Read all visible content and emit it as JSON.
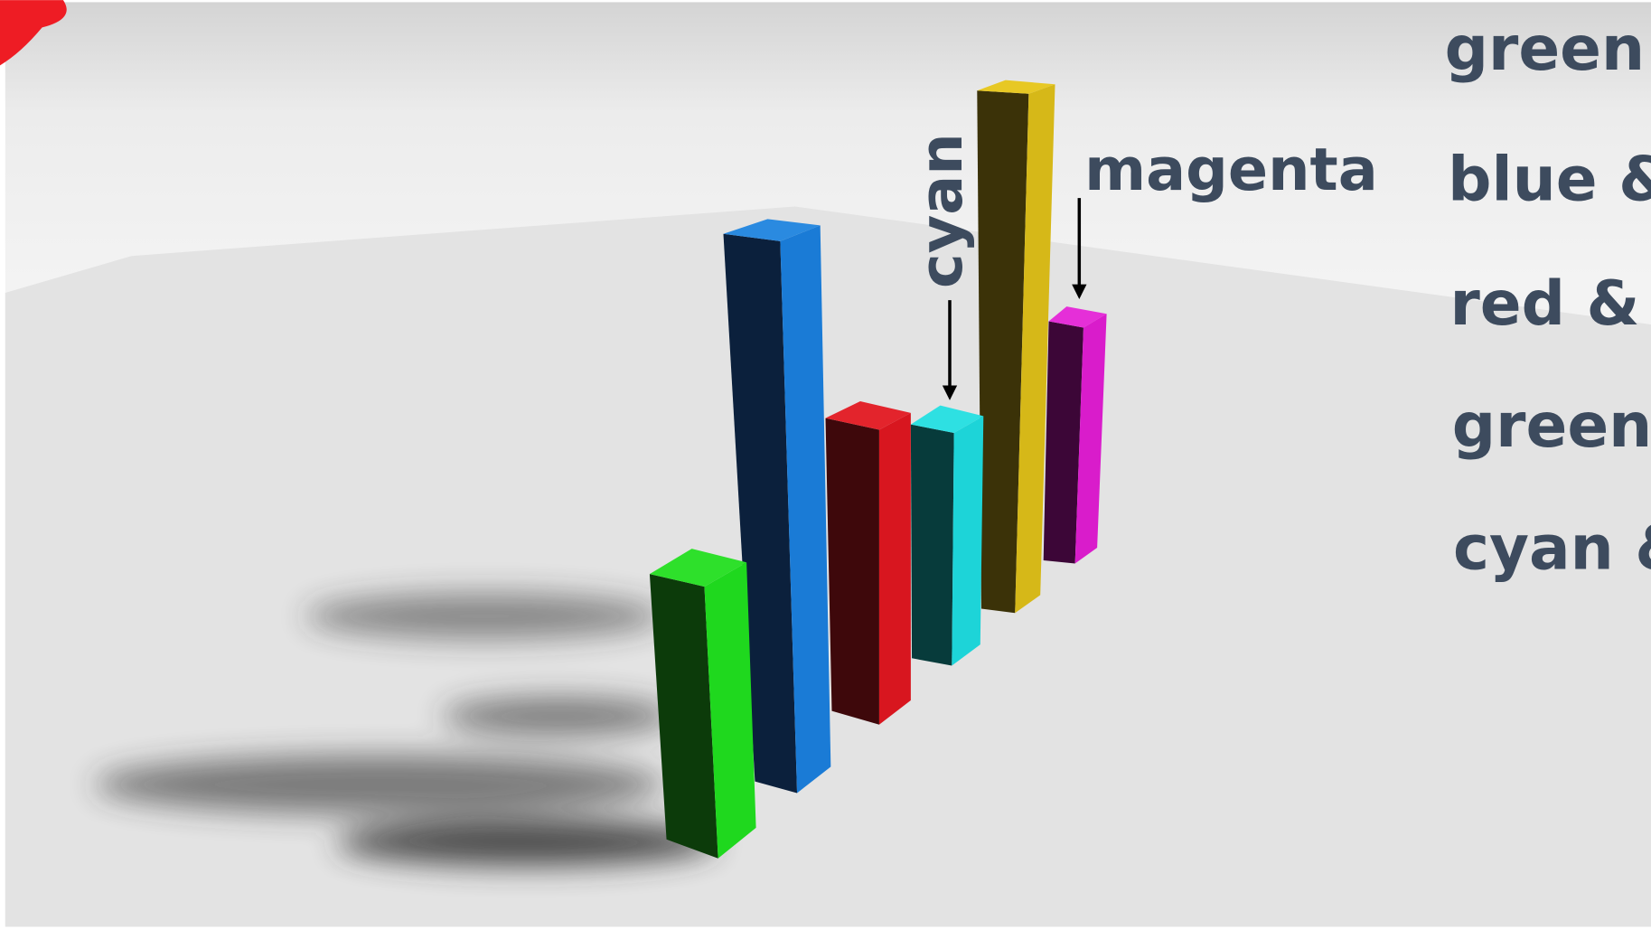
{
  "annotations": {
    "cyan": "cyan",
    "magenta": "magenta"
  },
  "side_labels": [
    "green &",
    "blue &",
    "red &",
    "green",
    "cyan &"
  ]
}
